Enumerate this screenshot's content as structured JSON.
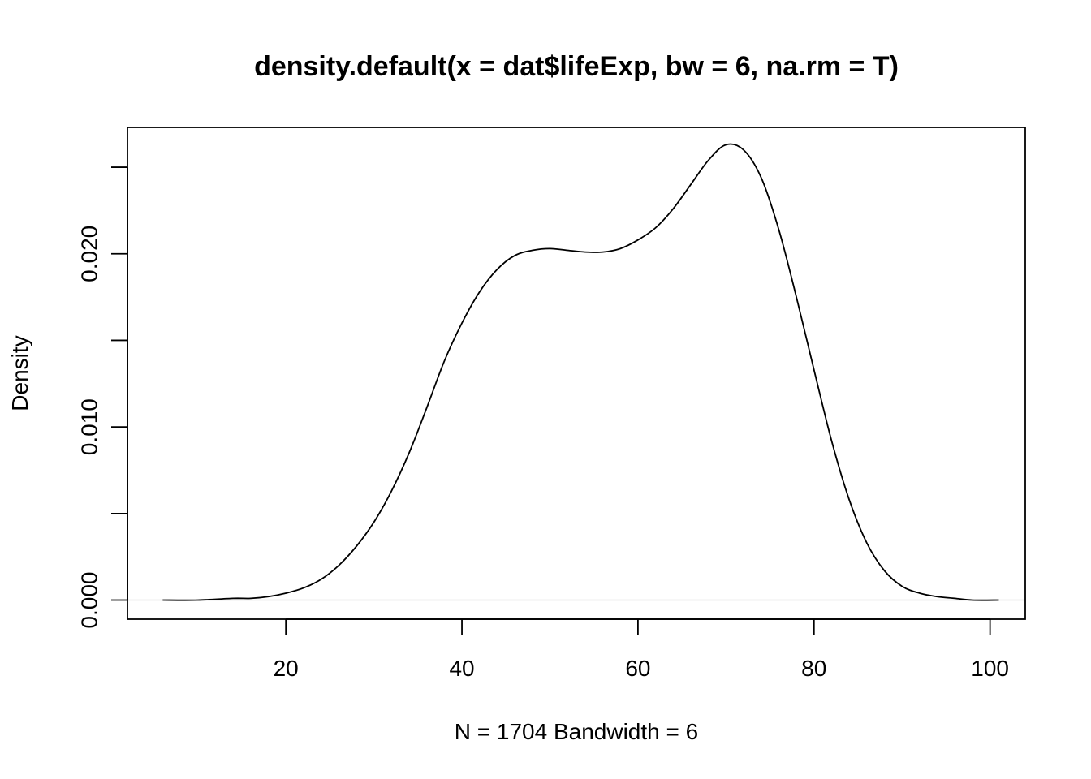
{
  "chart_data": {
    "type": "line",
    "title": "density.default(x = dat$lifeExp, bw = 6, na.rm = T)",
    "xlabel": "N = 1704   Bandwidth = 6",
    "ylabel": "Density",
    "xlim": [
      2,
      104
    ],
    "ylim": [
      -0.0011,
      0.0273
    ],
    "x_ticks": [
      20,
      40,
      60,
      80,
      100
    ],
    "x_tick_labels": [
      "20",
      "40",
      "60",
      "80",
      "100"
    ],
    "y_ticks": [
      0.0,
      0.005,
      0.01,
      0.015,
      0.02,
      0.025
    ],
    "y_tick_labels": [
      "0.000",
      "",
      "0.010",
      "",
      "0.020",
      ""
    ],
    "baseline": 0,
    "grid": false,
    "colors": {
      "line": "#000000",
      "baseline": "#bebebe"
    },
    "series": [
      {
        "x": [
          6,
          10,
          14,
          16,
          18,
          20,
          22,
          24,
          26,
          28,
          30,
          32,
          34,
          36,
          38,
          40,
          42,
          44,
          46,
          48,
          50,
          52,
          54,
          56,
          58,
          60,
          62,
          64,
          66,
          68,
          70,
          72,
          74,
          76,
          78,
          80,
          82,
          84,
          86,
          88,
          90,
          92,
          94,
          96,
          98,
          101
        ],
        "y": [
          0.0,
          0.0,
          0.0001,
          0.0001,
          0.0002,
          0.0004,
          0.0007,
          0.0012,
          0.002,
          0.0031,
          0.0045,
          0.0063,
          0.0085,
          0.0111,
          0.0138,
          0.016,
          0.0178,
          0.0191,
          0.0199,
          0.0202,
          0.0203,
          0.0202,
          0.0201,
          0.0201,
          0.0203,
          0.0208,
          0.0215,
          0.0226,
          0.024,
          0.0254,
          0.0263,
          0.026,
          0.0244,
          0.0214,
          0.0175,
          0.0133,
          0.0092,
          0.0058,
          0.0033,
          0.0017,
          0.0008,
          0.0004,
          0.0002,
          0.0001,
          0.0,
          0.0
        ]
      }
    ]
  }
}
